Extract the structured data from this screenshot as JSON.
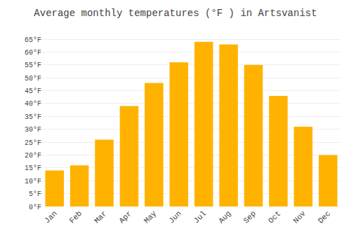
{
  "chart_data": {
    "type": "bar",
    "title": "Average monthly temperatures (°F ) in Artsvanist",
    "categories": [
      "Jan",
      "Feb",
      "Mar",
      "Apr",
      "May",
      "Jun",
      "Jul",
      "Aug",
      "Sep",
      "Oct",
      "Nov",
      "Dec"
    ],
    "values": [
      14,
      16,
      26,
      39,
      48,
      56,
      64,
      63,
      55,
      43,
      31,
      20
    ],
    "color": "#FFB300",
    "ylim": [
      0,
      68
    ],
    "yticks": [
      {
        "value": 0,
        "label": "0°F"
      },
      {
        "value": 5,
        "label": "5°F"
      },
      {
        "value": 10,
        "label": "10°F"
      },
      {
        "value": 15,
        "label": "15°F"
      },
      {
        "value": 20,
        "label": "20°F"
      },
      {
        "value": 25,
        "label": "25°F"
      },
      {
        "value": 30,
        "label": "30°F"
      },
      {
        "value": 35,
        "label": "35°F"
      },
      {
        "value": 40,
        "label": "40°F"
      },
      {
        "value": 45,
        "label": "45°F"
      },
      {
        "value": 50,
        "label": "50°F"
      },
      {
        "value": 55,
        "label": "55°F"
      },
      {
        "value": 60,
        "label": "60°F"
      },
      {
        "value": 65,
        "label": "65°F"
      }
    ],
    "grid": true
  }
}
